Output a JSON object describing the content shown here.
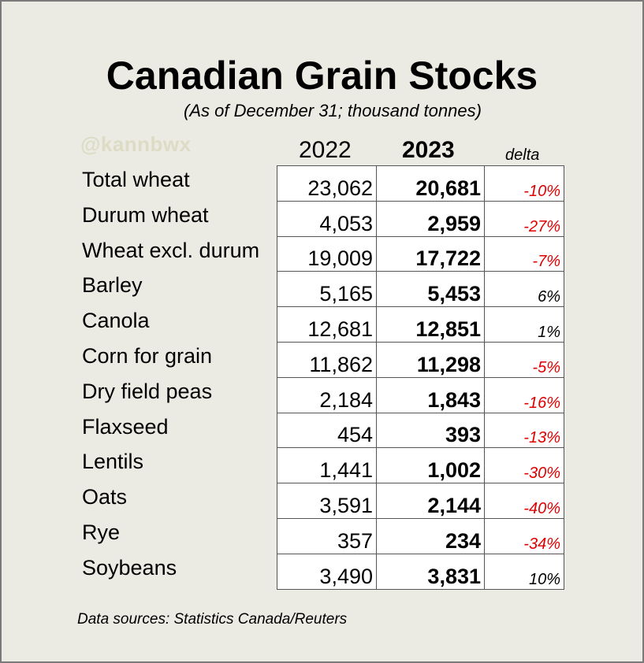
{
  "chart_data": {
    "type": "table",
    "title": "Canadian Grain Stocks",
    "subtitle": "(As of December 31; thousand tonnes)",
    "watermark": "@kannbwx",
    "columns": [
      "2022",
      "2023",
      "delta"
    ],
    "rows": [
      {
        "name": "Total wheat",
        "y2022": "23,062",
        "y2023": "20,681",
        "delta": "-10%",
        "delta_value": -10
      },
      {
        "name": "Durum wheat",
        "y2022": "4,053",
        "y2023": "2,959",
        "delta": "-27%",
        "delta_value": -27
      },
      {
        "name": "Wheat excl. durum",
        "y2022": "19,009",
        "y2023": "17,722",
        "delta": "-7%",
        "delta_value": -7
      },
      {
        "name": "Barley",
        "y2022": "5,165",
        "y2023": "5,453",
        "delta": "6%",
        "delta_value": 6
      },
      {
        "name": "Canola",
        "y2022": "12,681",
        "y2023": "12,851",
        "delta": "1%",
        "delta_value": 1
      },
      {
        "name": "Corn for grain",
        "y2022": "11,862",
        "y2023": "11,298",
        "delta": "-5%",
        "delta_value": -5
      },
      {
        "name": "Dry field peas",
        "y2022": "2,184",
        "y2023": "1,843",
        "delta": "-16%",
        "delta_value": -16
      },
      {
        "name": "Flaxseed",
        "y2022": "454",
        "y2023": "393",
        "delta": "-13%",
        "delta_value": -13
      },
      {
        "name": "Lentils",
        "y2022": "1,441",
        "y2023": "1,002",
        "delta": "-30%",
        "delta_value": -30
      },
      {
        "name": "Oats",
        "y2022": "3,591",
        "y2023": "2,144",
        "delta": "-40%",
        "delta_value": -40
      },
      {
        "name": "Rye",
        "y2022": "357",
        "y2023": "234",
        "delta": "-34%",
        "delta_value": -34
      },
      {
        "name": "Soybeans",
        "y2022": "3,490",
        "y2023": "3,831",
        "delta": "10%",
        "delta_value": 10
      }
    ],
    "footer": "Data sources: Statistics Canada/Reuters"
  },
  "colors": {
    "background": "#ecebe3",
    "negative": "#e00000",
    "positive": "#000000",
    "watermark": "#dcdcc6"
  }
}
